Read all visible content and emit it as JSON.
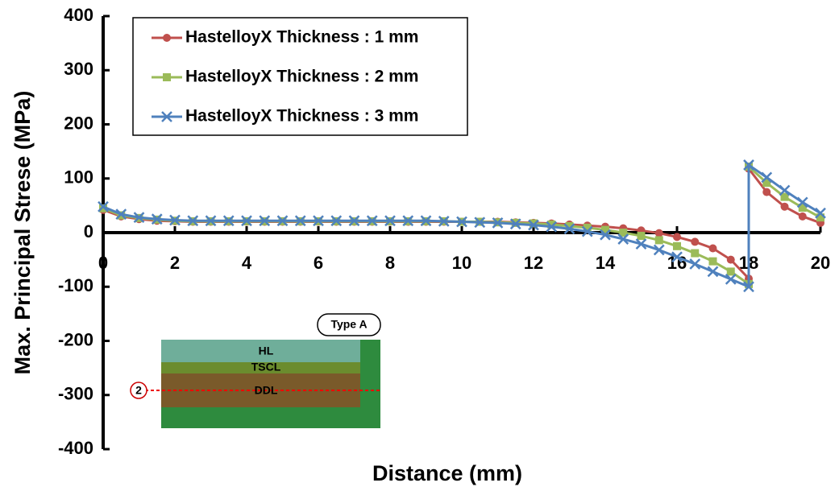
{
  "chart_data": {
    "type": "line",
    "x_label": "Distance (mm)",
    "y_label": "Max. Principal Strese (MPa)",
    "x": [
      0,
      0.5,
      1,
      1.5,
      2,
      2.5,
      3,
      3.5,
      4,
      4.5,
      5,
      5.5,
      6,
      6.5,
      7,
      7.5,
      8,
      8.5,
      9,
      9.5,
      10,
      10.5,
      11,
      11.5,
      12,
      12.5,
      13,
      13.5,
      14,
      14.5,
      15,
      15.5,
      16,
      16.5,
      17,
      17.5,
      18,
      18,
      18.5,
      19,
      19.5,
      20
    ],
    "series": [
      {
        "name": "HastelloyX Thickness : 1 mm",
        "color": "#c0504d",
        "marker": "circle",
        "values": [
          42,
          30,
          25,
          22,
          21,
          20,
          20,
          20,
          20,
          20,
          20,
          20,
          20,
          20,
          20,
          20,
          20,
          20,
          20,
          20,
          20,
          20,
          20,
          19,
          18,
          17,
          15,
          13,
          11,
          8,
          4,
          -1,
          -8,
          -17,
          -29,
          -50,
          -85,
          118,
          75,
          48,
          30,
          18
        ]
      },
      {
        "name": "HastelloyX Thickness : 2 mm",
        "color": "#9bbb59",
        "marker": "square",
        "values": [
          45,
          32,
          27,
          24,
          22,
          21,
          21,
          21,
          21,
          21,
          21,
          21,
          21,
          21,
          21,
          21,
          21,
          21,
          21,
          21,
          20,
          20,
          19,
          18,
          17,
          15,
          12,
          9,
          5,
          0,
          -6,
          -14,
          -25,
          -38,
          -53,
          -72,
          -95,
          122,
          92,
          66,
          46,
          28
        ]
      },
      {
        "name": "HastelloyX Thickness : 3 mm",
        "color": "#4f81bd",
        "marker": "x",
        "values": [
          48,
          34,
          28,
          25,
          23,
          22,
          22,
          22,
          22,
          22,
          22,
          22,
          22,
          22,
          22,
          22,
          22,
          22,
          22,
          21,
          20,
          19,
          18,
          16,
          14,
          11,
          7,
          2,
          -4,
          -12,
          -21,
          -32,
          -45,
          -58,
          -72,
          -86,
          -100,
          125,
          102,
          78,
          56,
          36
        ]
      }
    ],
    "xlim": [
      0,
      20
    ],
    "xticks": [
      0,
      2,
      4,
      6,
      8,
      10,
      12,
      14,
      16,
      18,
      20
    ],
    "ylim": [
      -400,
      400
    ],
    "yticks": [
      -400,
      -300,
      -200,
      -100,
      0,
      100,
      200,
      300,
      400
    ],
    "legend": "upper left",
    "inset": {
      "badge": "Type A",
      "layers": [
        "HL",
        "TSCL",
        "DDL"
      ],
      "marker": "2"
    }
  }
}
